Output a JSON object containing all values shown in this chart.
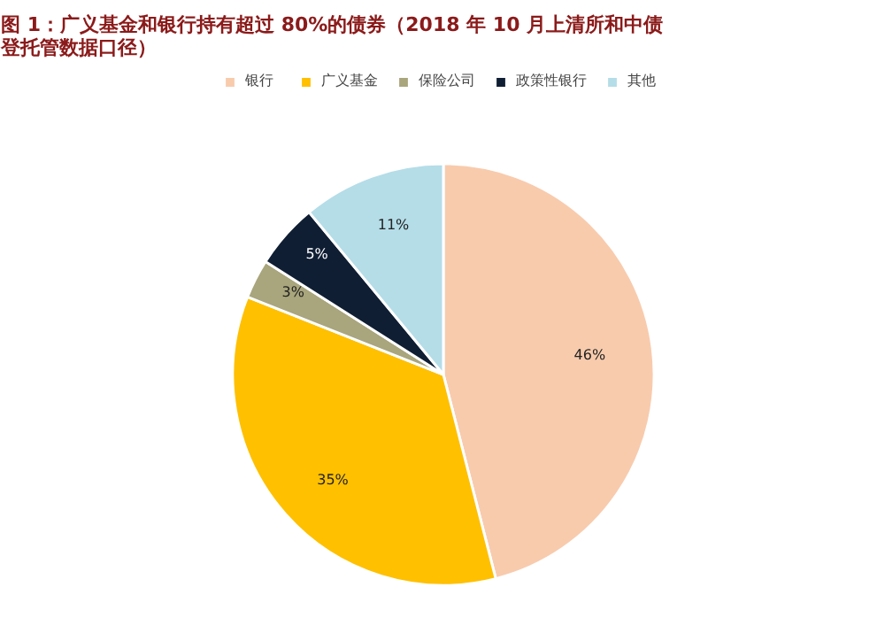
{
  "chart_data": {
    "type": "pie",
    "title": "图 1：广义基金和银行持有超过 80%的债券（2018 年 10 月上清所和中债登托管数据口径）",
    "categories": [
      "银行",
      "广义基金",
      "保险公司",
      "政策性银行",
      "其他"
    ],
    "values": [
      46,
      35,
      3,
      5,
      11
    ],
    "value_labels": [
      "46%",
      "35%",
      "3%",
      "5%",
      "11%"
    ],
    "colors": [
      "#f8cbad",
      "#ffc000",
      "#a9a57c",
      "#0f1e33",
      "#b4dde8"
    ],
    "legend": "top"
  }
}
